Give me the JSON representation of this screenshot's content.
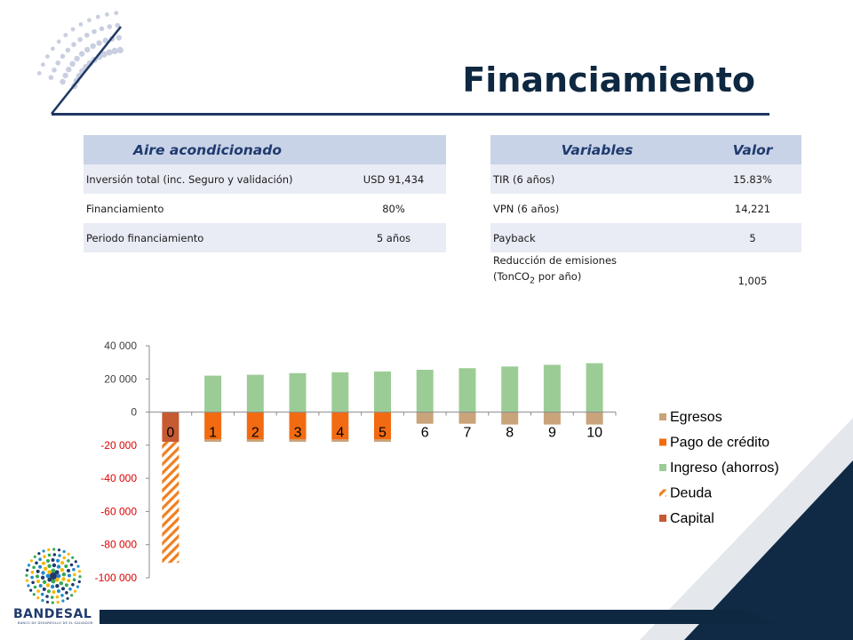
{
  "slide": {
    "title": "Financiamiento"
  },
  "left_table": {
    "header": "Aire acondicionado",
    "rows": [
      {
        "label": "Inversión total  (inc. Seguro y validación)",
        "value": "USD 91,434"
      },
      {
        "label": "Financiamiento",
        "value": "80%"
      },
      {
        "label": "Periodo financiamiento",
        "value": "5 años"
      }
    ]
  },
  "right_table": {
    "header_variable": "Variables",
    "header_value": "Valor",
    "rows": [
      {
        "label": "TIR (6 años)",
        "value": "15.83%"
      },
      {
        "label": "VPN (6 años)",
        "value": "14,221"
      },
      {
        "label": "Payback",
        "value": "5"
      },
      {
        "label_line1": "Reducción de emisiones",
        "label_line2_pre": "(TonCO",
        "label_line2_sub": "2",
        "label_line2_post": " por año)",
        "value": "1,005"
      }
    ]
  },
  "chart_data": {
    "type": "bar",
    "stacked": true,
    "categories": [
      "0",
      "1",
      "2",
      "3",
      "4",
      "5",
      "6",
      "7",
      "8",
      "9",
      "10"
    ],
    "series": [
      {
        "name": "Egresos",
        "color": "#c9a37a",
        "values": [
          0,
          -1500,
          -1500,
          -1500,
          -1500,
          -1500,
          -7000,
          -7000,
          -7500,
          -7500,
          -7500
        ]
      },
      {
        "name": "Pago de crédito",
        "color": "#f26b12",
        "values": [
          0,
          -16500,
          -16500,
          -16500,
          -16500,
          -16500,
          0,
          0,
          0,
          0,
          0
        ]
      },
      {
        "name": "Ingreso (ahorros)",
        "color": "#9ccc96",
        "values": [
          0,
          22000,
          22500,
          23500,
          24000,
          24500,
          25500,
          26500,
          27500,
          28500,
          29500
        ]
      },
      {
        "name": "Deuda",
        "color": "#f07f20",
        "pattern": "diagonal-stripes",
        "values": [
          -73000,
          0,
          0,
          0,
          0,
          0,
          0,
          0,
          0,
          0,
          0
        ]
      },
      {
        "name": "Capital",
        "color": "#c55a33",
        "values": [
          -18000,
          0,
          0,
          0,
          0,
          0,
          0,
          0,
          0,
          0,
          0
        ]
      }
    ],
    "yticks": [
      "40 000",
      "20 000",
      "0",
      "-20 000",
      "-40 000",
      "-60 000",
      "-80 000",
      "-100 000"
    ],
    "ylim": [
      -100000,
      40000
    ],
    "negative_tick_color": "#e00000",
    "grid": false,
    "legend": "right"
  },
  "logo": {
    "name": "BANDESAL",
    "subtitle": "BANCO DE DESARROLLO DE EL SALVADOR"
  }
}
